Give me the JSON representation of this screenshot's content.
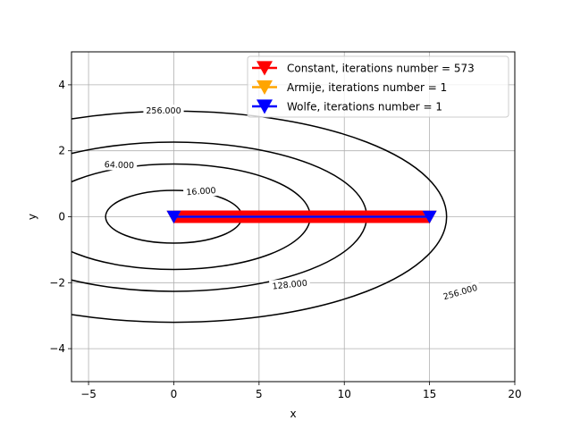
{
  "chart_data": {
    "type": "line",
    "xlabel": "x",
    "ylabel": "y",
    "xlim": [
      -6,
      20
    ],
    "ylim": [
      -5,
      5
    ],
    "x_ticks": [
      -5,
      0,
      5,
      10,
      15,
      20
    ],
    "y_ticks": [
      -4,
      -2,
      0,
      2,
      4
    ],
    "x_tick_labels": [
      "−5",
      "0",
      "5",
      "10",
      "15",
      "20"
    ],
    "y_tick_labels": [
      "−4",
      "−2",
      "0",
      "2",
      "4"
    ],
    "grid": true,
    "legend_position": "top-right",
    "contour": {
      "center": [
        0,
        0
      ],
      "x_half_axis_factor": 1.0,
      "y_half_axis_factor": 0.2,
      "levels": [
        16,
        64,
        128,
        256
      ],
      "level_labels": [
        {
          "text": "16.000",
          "x": 1.6,
          "y": 0.78,
          "angle": -4
        },
        {
          "text": "64.000",
          "x": -3.2,
          "y": 1.58,
          "angle": 2
        },
        {
          "text": "128.000",
          "x": 6.8,
          "y": -2.05,
          "angle": -6
        },
        {
          "text": "256.000",
          "x": -0.6,
          "y": 3.22,
          "angle": 0
        },
        {
          "text": "256.000",
          "x": 16.8,
          "y": -2.28,
          "angle": -16
        }
      ]
    },
    "series": [
      {
        "name": "Constant, iterations number = 573",
        "color": "#ff0000",
        "marker": "triangle-down",
        "x": [
          15.0,
          14.5,
          14.0,
          13.5,
          13.0,
          12.5,
          12.0,
          11.5,
          11.0,
          10.5,
          10.0,
          9.5,
          9.0,
          8.5,
          8.0,
          7.5,
          7.0,
          6.5,
          6.0,
          5.5,
          5.0,
          4.5,
          4.0,
          3.5,
          3.0,
          2.5,
          2.0,
          1.5,
          1.0,
          0.5,
          0.0
        ],
        "y": [
          0,
          0,
          0,
          0,
          0,
          0,
          0,
          0,
          0,
          0,
          0,
          0,
          0,
          0,
          0,
          0,
          0,
          0,
          0,
          0,
          0,
          0,
          0,
          0,
          0,
          0,
          0,
          0,
          0,
          0,
          0
        ]
      },
      {
        "name": "Armije, iterations number = 1",
        "color": "#ffa500",
        "marker": "triangle-down",
        "x": [
          15.0,
          0.0
        ],
        "y": [
          0,
          0
        ]
      },
      {
        "name": "Wolfe, iterations number = 1",
        "color": "#0000ff",
        "marker": "triangle-down",
        "x": [
          15.0,
          0.0
        ],
        "y": [
          0,
          0
        ]
      }
    ]
  }
}
